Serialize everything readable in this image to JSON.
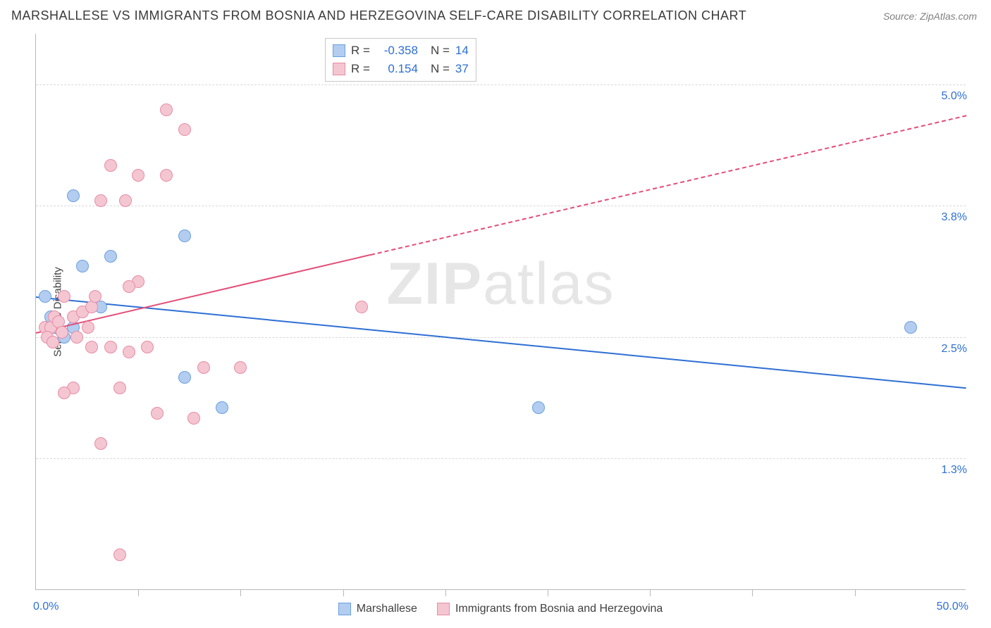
{
  "header": {
    "title": "MARSHALLESE VS IMMIGRANTS FROM BOSNIA AND HERZEGOVINA SELF-CARE DISABILITY CORRELATION CHART",
    "source": "Source: ZipAtlas.com"
  },
  "chart": {
    "type": "scatter",
    "watermark_a": "ZIP",
    "watermark_b": "atlas",
    "watermark_color": "#e6e6e6",
    "background_color": "#ffffff",
    "border_color": "#b8b8b8",
    "grid_color": "#d8d8d8",
    "yaxis_title": "Self-Care Disability",
    "xlim": [
      0,
      50
    ],
    "ylim": [
      0,
      5.5
    ],
    "ygrid": [
      {
        "v": 1.3,
        "label": "1.3%"
      },
      {
        "v": 2.5,
        "label": "2.5%"
      },
      {
        "v": 3.8,
        "label": "3.8%"
      },
      {
        "v": 5.0,
        "label": "5.0%"
      }
    ],
    "xticks": [
      5.5,
      11,
      16.5,
      22,
      27.5,
      33,
      38.5,
      44
    ],
    "xlab_min": "0.0%",
    "xlab_max": "50.0%",
    "ylab_color": "#2e6fd4",
    "series": [
      {
        "name": "Marshallese",
        "fill": "#b3cdf0",
        "stroke": "#6a9fe0",
        "line_color": "#2e6fd4",
        "R": "-0.358",
        "N": "14",
        "points": [
          [
            2.0,
            3.9
          ],
          [
            0.5,
            2.9
          ],
          [
            0.8,
            2.7
          ],
          [
            2.5,
            3.2
          ],
          [
            4.0,
            3.3
          ],
          [
            8.0,
            3.5
          ],
          [
            8.0,
            2.1
          ],
          [
            10.0,
            1.8
          ],
          [
            2.0,
            2.6
          ],
          [
            1.0,
            2.6
          ],
          [
            27.0,
            1.8
          ],
          [
            47.0,
            2.6
          ],
          [
            3.5,
            2.8
          ],
          [
            1.5,
            2.5
          ]
        ],
        "trend": {
          "x1": 0,
          "y1": 2.9,
          "x2": 50,
          "y2": 2.0,
          "solid_to": 50
        }
      },
      {
        "name": "Immigrants from Bosnia and Herzegovina",
        "fill": "#f4c6d2",
        "stroke": "#e88ba5",
        "line_color": "#e34d78",
        "R": "0.154",
        "N": "37",
        "points": [
          [
            0.5,
            2.6
          ],
          [
            0.8,
            2.6
          ],
          [
            1.0,
            2.7
          ],
          [
            1.2,
            2.65
          ],
          [
            1.4,
            2.55
          ],
          [
            0.6,
            2.5
          ],
          [
            0.9,
            2.45
          ],
          [
            2.0,
            2.7
          ],
          [
            2.5,
            2.75
          ],
          [
            3.0,
            2.8
          ],
          [
            3.2,
            2.9
          ],
          [
            2.0,
            2.0
          ],
          [
            1.5,
            1.95
          ],
          [
            3.5,
            1.45
          ],
          [
            4.5,
            2.0
          ],
          [
            3.0,
            2.4
          ],
          [
            4.0,
            2.4
          ],
          [
            5.0,
            2.35
          ],
          [
            5.5,
            3.05
          ],
          [
            5.0,
            3.0
          ],
          [
            4.8,
            3.85
          ],
          [
            3.5,
            3.85
          ],
          [
            5.5,
            4.1
          ],
          [
            7.0,
            4.1
          ],
          [
            8.0,
            4.55
          ],
          [
            7.0,
            4.75
          ],
          [
            6.0,
            2.4
          ],
          [
            6.5,
            1.75
          ],
          [
            8.5,
            1.7
          ],
          [
            9.0,
            2.2
          ],
          [
            11.0,
            2.2
          ],
          [
            17.5,
            2.8
          ],
          [
            4.5,
            0.35
          ],
          [
            1.5,
            2.9
          ],
          [
            2.2,
            2.5
          ],
          [
            2.8,
            2.6
          ],
          [
            4.0,
            4.2
          ]
        ],
        "trend": {
          "x1": 0,
          "y1": 2.55,
          "x2": 50,
          "y2": 4.7,
          "solid_to": 18
        }
      }
    ],
    "legend": {
      "stats_label_r": "R =",
      "stats_label_n": "N ="
    }
  }
}
